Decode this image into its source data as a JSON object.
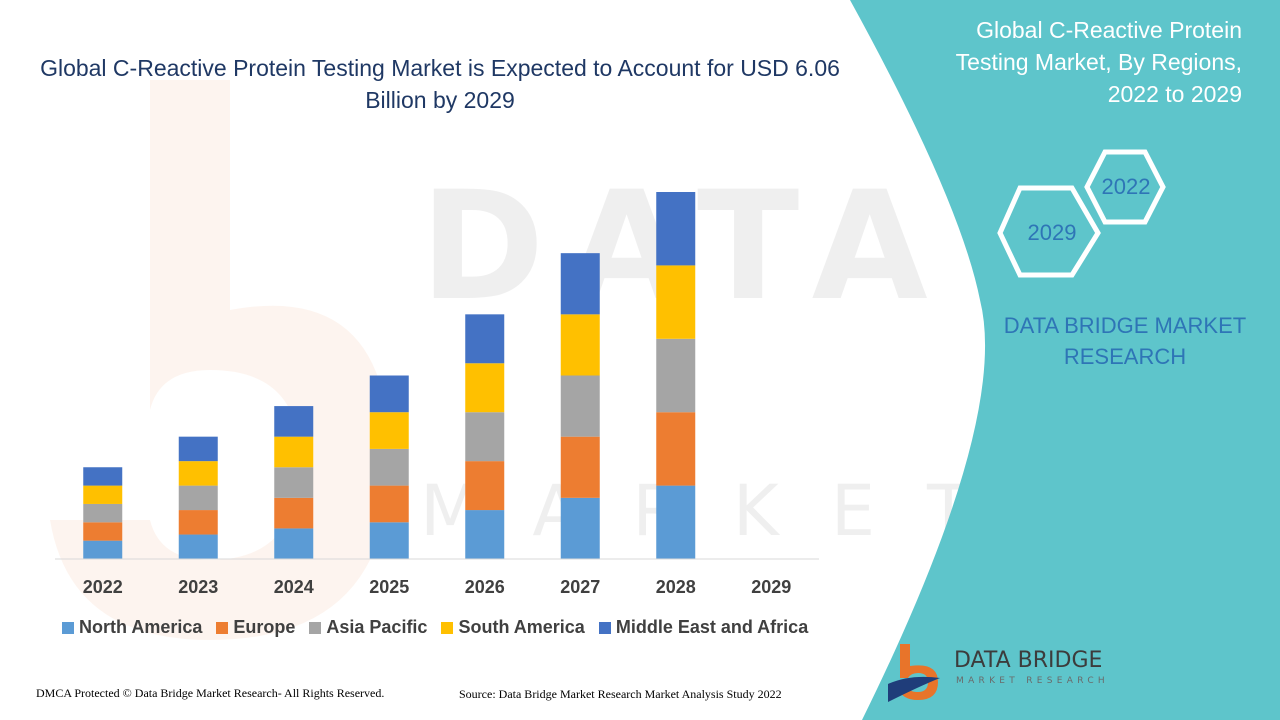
{
  "page": {
    "main_title": "Global C-Reactive Protein Testing Market is Expected to Account for USD 6.06 Billion by 2029",
    "side_title": "Global C-Reactive Protein Testing Market, By Regions, 2022 to 2029",
    "hex_year_top": "2022",
    "hex_year_bottom": "2029",
    "brand_label": "DATA BRIDGE MARKET RESEARCH",
    "footer_left": "DMCA Protected © Data Bridge Market Research- All Rights Reserved.",
    "footer_right": "Source: Data Bridge Market Research Market Analysis Study 2022",
    "logo_name": "DATA BRIDGE",
    "logo_sub": "MARKET RESEARCH",
    "watermark_big": "DATA BRIDGE",
    "watermark_small": "MARKET RESEARCH",
    "colors": {
      "teal": "#5ec5cb",
      "title_blue": "#1f3864",
      "brand_blue": "#2e75b6",
      "logo_orange": "#e8742a",
      "logo_navy": "#1f3d7a"
    }
  },
  "chart_data": {
    "type": "bar",
    "stacked": true,
    "categories": [
      "2022",
      "2023",
      "2024",
      "2025",
      "2026",
      "2027",
      "2028",
      "2029"
    ],
    "series": [
      {
        "name": "North America",
        "color": "#5b9bd5",
        "values": [
          0.6,
          0.8,
          1.0,
          1.2,
          1.6,
          2.0,
          2.4,
          null
        ]
      },
      {
        "name": "Europe",
        "color": "#ed7d31",
        "values": [
          0.6,
          0.8,
          1.0,
          1.2,
          1.6,
          2.0,
          2.4,
          null
        ]
      },
      {
        "name": "Asia Pacific",
        "color": "#a5a5a5",
        "values": [
          0.6,
          0.8,
          1.0,
          1.2,
          1.6,
          2.0,
          2.4,
          null
        ]
      },
      {
        "name": "South America",
        "color": "#ffc000",
        "values": [
          0.6,
          0.8,
          1.0,
          1.2,
          1.6,
          2.0,
          2.4,
          null
        ]
      },
      {
        "name": "Middle East and Africa",
        "color": "#4472c4",
        "values": [
          0.6,
          0.8,
          1.0,
          1.2,
          1.6,
          2.0,
          2.4,
          null
        ]
      }
    ],
    "title": "",
    "xlabel": "",
    "ylabel": "",
    "ylim": [
      0,
      12
    ],
    "grid": false,
    "legend": "bottom"
  }
}
